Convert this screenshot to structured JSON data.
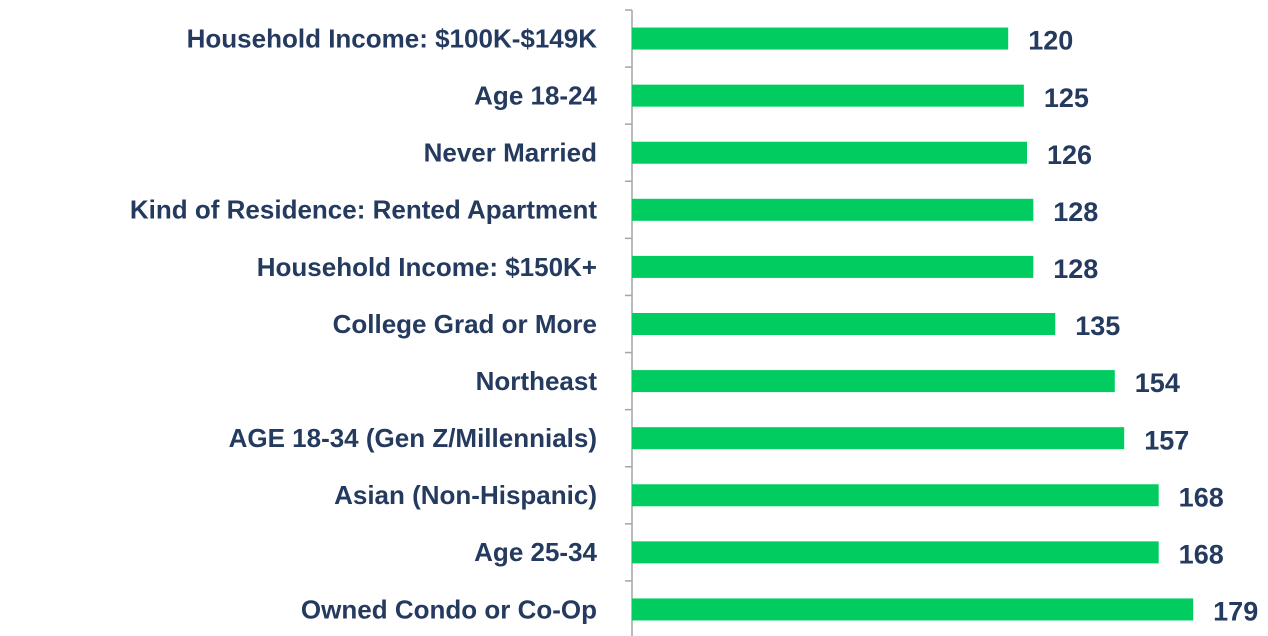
{
  "chart_data": {
    "type": "barh",
    "categories": [
      "Household Income: $100K-$149K",
      "Age 18-24",
      "Never Married",
      "Kind of Residence: Rented Apartment",
      "Household Income: $150K+",
      "College Grad or More",
      "Northeast",
      "AGE 18-34 (Gen Z/Millennials)",
      "Asian (Non-Hispanic)",
      "Age 25-34",
      "Owned Condo or Co-Op"
    ],
    "values": [
      120,
      125,
      126,
      128,
      128,
      135,
      154,
      157,
      168,
      168,
      179
    ],
    "color": "#00cc5f",
    "xlim": [
      0,
      200
    ]
  }
}
